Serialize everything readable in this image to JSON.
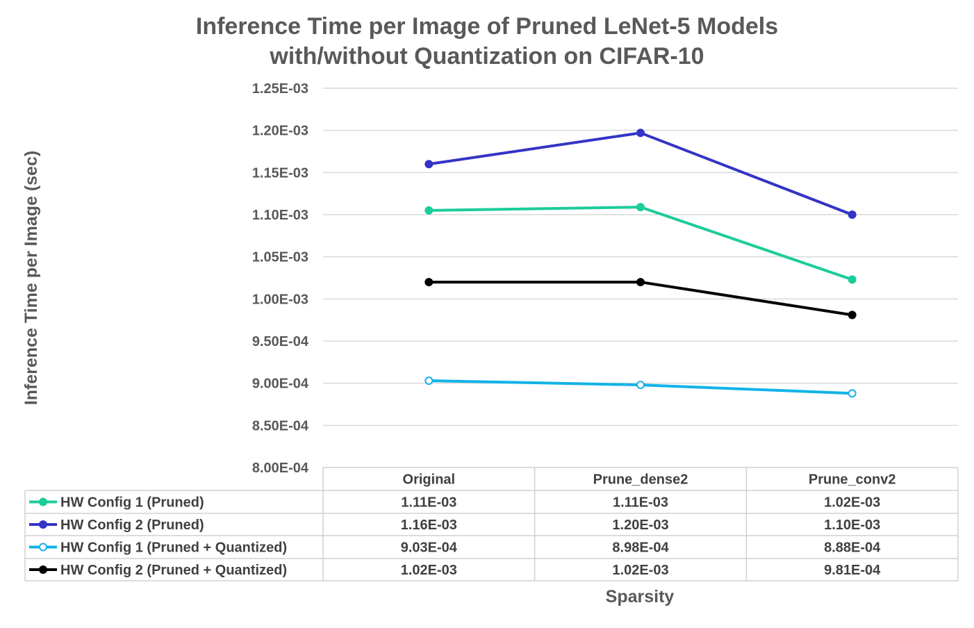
{
  "chart_data": {
    "type": "line",
    "title_lines": [
      "Inference Time per Image of Pruned LeNet-5 Models",
      "with/without Quantization on CIFAR-10"
    ],
    "xlabel": "Sparsity",
    "ylabel": "Inference Time per Image (sec)",
    "ylim": [
      0.0008,
      0.00125
    ],
    "ytick_values": [
      0.0008,
      0.00085,
      0.0009,
      0.00095,
      0.001,
      0.00105,
      0.0011,
      0.00115,
      0.0012,
      0.00125
    ],
    "ytick_labels": [
      "8.00E-04",
      "8.50E-04",
      "9.00E-04",
      "9.50E-04",
      "1.00E-03",
      "1.05E-03",
      "1.10E-03",
      "1.15E-03",
      "1.20E-03",
      "1.25E-03"
    ],
    "grid": true,
    "categories": [
      "Original",
      "Prune_dense2",
      "Prune_conv2"
    ],
    "series": [
      {
        "name": "HW Config 1 (Pruned)",
        "color": "#1ccc9a",
        "marker": "filled",
        "values": [
          0.001105,
          0.001109,
          0.001023
        ],
        "labels": [
          "1.11E-03",
          "1.11E-03",
          "1.02E-03"
        ]
      },
      {
        "name": "HW Config 2 (Pruned)",
        "color": "#3434c6",
        "marker": "filled",
        "values": [
          0.00116,
          0.001197,
          0.0011
        ],
        "labels": [
          "1.16E-03",
          "1.20E-03",
          "1.10E-03"
        ]
      },
      {
        "name": "HW Config 1 (Pruned + Quantized)",
        "color": "#12b2e8",
        "marker": "hollow",
        "values": [
          0.000903,
          0.000898,
          0.000888
        ],
        "labels": [
          "9.03E-04",
          "8.98E-04",
          "8.88E-04"
        ]
      },
      {
        "name": "HW Config 2 (Pruned + Quantized)",
        "color": "#000000",
        "marker": "filled",
        "values": [
          0.00102,
          0.00102,
          0.000981
        ],
        "labels": [
          "1.02E-03",
          "1.02E-03",
          "9.81E-04"
        ]
      }
    ]
  }
}
